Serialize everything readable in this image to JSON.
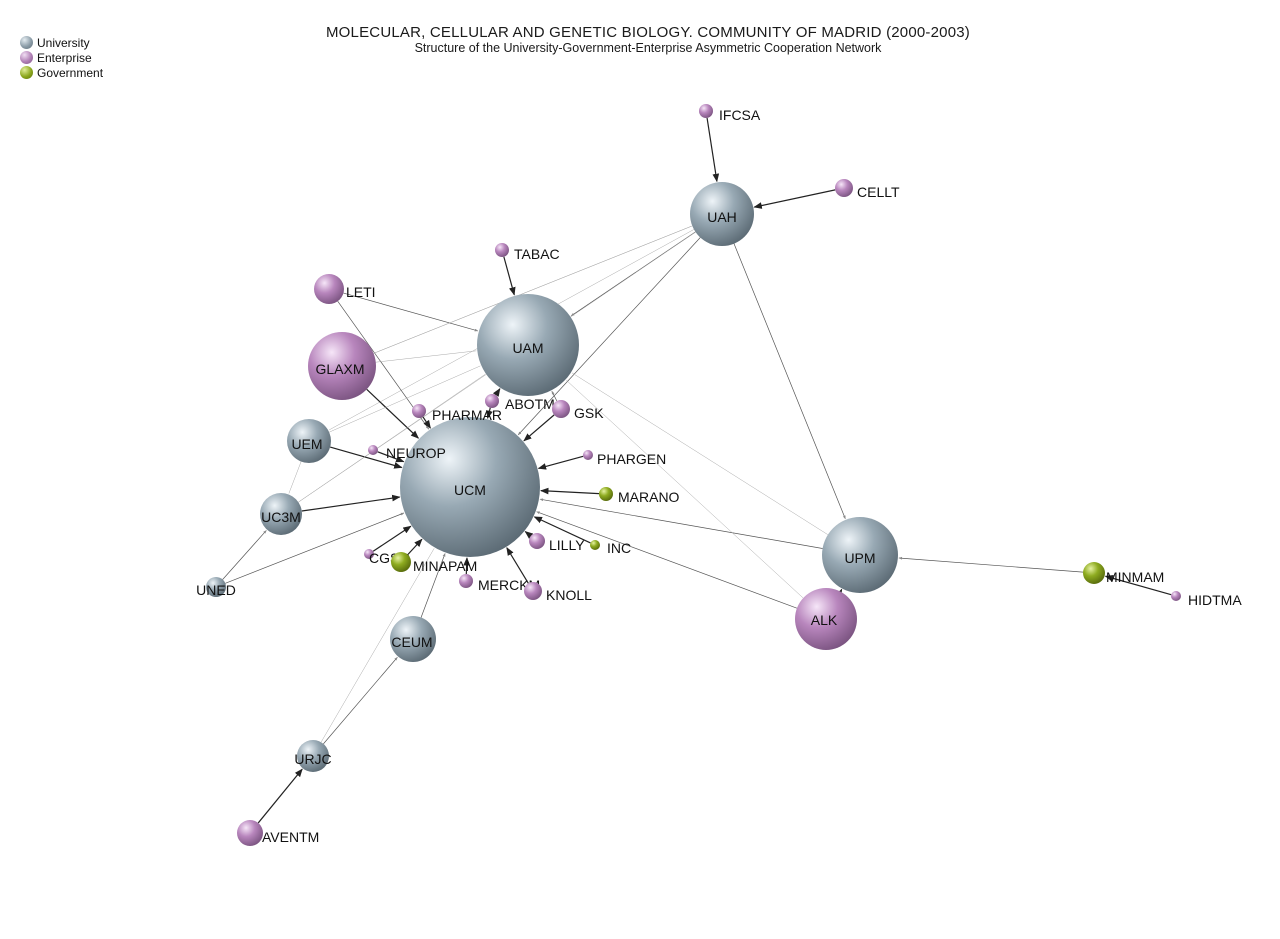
{
  "title": "MOLECULAR, CELLULAR AND GENETIC BIOLOGY. COMMUNITY OF MADRID (2000-2003)",
  "subtitle": "Structure of the University-Government-Enterprise Asymmetric Cooperation Network",
  "legend": [
    {
      "label": "University",
      "type": "university"
    },
    {
      "label": "Enterprise",
      "type": "enterprise"
    },
    {
      "label": "Government",
      "type": "government"
    }
  ],
  "colors": {
    "university": "#8a9ba6",
    "enterprise": "#b07fb5",
    "government": "#8aa61c",
    "edge": "#222222"
  },
  "nodes": [
    {
      "id": "UCM",
      "type": "university"
    },
    {
      "id": "UAM",
      "type": "university"
    },
    {
      "id": "UAH",
      "type": "university"
    },
    {
      "id": "UPM",
      "type": "university"
    },
    {
      "id": "UEM",
      "type": "university"
    },
    {
      "id": "UC3M",
      "type": "university"
    },
    {
      "id": "UNED",
      "type": "university"
    },
    {
      "id": "CEUM",
      "type": "university"
    },
    {
      "id": "URJC",
      "type": "university"
    },
    {
      "id": "GLAXM",
      "type": "enterprise"
    },
    {
      "id": "LETI",
      "type": "enterprise"
    },
    {
      "id": "ALK",
      "type": "enterprise"
    },
    {
      "id": "AVENTM",
      "type": "enterprise"
    },
    {
      "id": "IFCSA",
      "type": "enterprise"
    },
    {
      "id": "CELLT",
      "type": "enterprise"
    },
    {
      "id": "TABAC",
      "type": "enterprise"
    },
    {
      "id": "PHARMAR",
      "type": "enterprise"
    },
    {
      "id": "ABOTM",
      "type": "enterprise"
    },
    {
      "id": "GSK",
      "type": "enterprise"
    },
    {
      "id": "NEUROP",
      "type": "enterprise"
    },
    {
      "id": "PHARGEN",
      "type": "enterprise"
    },
    {
      "id": "LILLY",
      "type": "enterprise"
    },
    {
      "id": "CGSO",
      "type": "enterprise"
    },
    {
      "id": "MERCKM",
      "type": "enterprise"
    },
    {
      "id": "KNOLL",
      "type": "enterprise"
    },
    {
      "id": "HIDTMA",
      "type": "enterprise"
    },
    {
      "id": "MARANO",
      "type": "government"
    },
    {
      "id": "INC",
      "type": "government"
    },
    {
      "id": "MINAPAM",
      "type": "government"
    },
    {
      "id": "MINMAM",
      "type": "government"
    }
  ],
  "edges": [
    {
      "from": "IFCSA",
      "to": "UAH",
      "weight": 2
    },
    {
      "from": "CELLT",
      "to": "UAH",
      "weight": 2
    },
    {
      "from": "TABAC",
      "to": "UAM",
      "weight": 2
    },
    {
      "from": "UAH",
      "to": "UAM",
      "weight": 1
    },
    {
      "from": "UAH",
      "to": "UCM",
      "weight": 1
    },
    {
      "from": "UAH",
      "to": "UPM",
      "weight": 1
    },
    {
      "from": "UAH",
      "to": "GLAXM",
      "weight": 0
    },
    {
      "from": "UAH",
      "to": "UEM",
      "weight": 0
    },
    {
      "from": "UAH",
      "to": "UC3M",
      "weight": 0
    },
    {
      "from": "LETI",
      "to": "UAM",
      "weight": 1
    },
    {
      "from": "LETI",
      "to": "UCM",
      "weight": 1
    },
    {
      "from": "GLAXM",
      "to": "UAM",
      "weight": 0
    },
    {
      "from": "GLAXM",
      "to": "UCM",
      "weight": 2
    },
    {
      "from": "GLAXM",
      "to": "UAH",
      "weight": 0
    },
    {
      "from": "PHARMAR",
      "to": "UCM",
      "weight": 2
    },
    {
      "from": "ABOTM",
      "to": "UAM",
      "weight": 2
    },
    {
      "from": "ABOTM",
      "to": "UCM",
      "weight": 2
    },
    {
      "from": "GSK",
      "to": "UCM",
      "weight": 2
    },
    {
      "from": "GSK",
      "to": "UAM",
      "weight": 1
    },
    {
      "from": "UEM",
      "to": "UCM",
      "weight": 2
    },
    {
      "from": "UEM",
      "to": "UAM",
      "weight": 0
    },
    {
      "from": "UEM",
      "to": "UC3M",
      "weight": 0
    },
    {
      "from": "NEUROP",
      "to": "UCM",
      "weight": 2
    },
    {
      "from": "PHARGEN",
      "to": "UCM",
      "weight": 2
    },
    {
      "from": "MARANO",
      "to": "UCM",
      "weight": 2
    },
    {
      "from": "INC",
      "to": "UCM",
      "weight": 2
    },
    {
      "from": "LILLY",
      "to": "UCM",
      "weight": 2
    },
    {
      "from": "KNOLL",
      "to": "UCM",
      "weight": 2
    },
    {
      "from": "MERCKM",
      "to": "UCM",
      "weight": 2
    },
    {
      "from": "MINAPAM",
      "to": "UCM",
      "weight": 2
    },
    {
      "from": "CGSO",
      "to": "UCM",
      "weight": 2
    },
    {
      "from": "UC3M",
      "to": "UCM",
      "weight": 2
    },
    {
      "from": "UC3M",
      "to": "UAM",
      "weight": 0
    },
    {
      "from": "UNED",
      "to": "UC3M",
      "weight": 1
    },
    {
      "from": "UNED",
      "to": "UCM",
      "weight": 1
    },
    {
      "from": "CEUM",
      "to": "UCM",
      "weight": 1
    },
    {
      "from": "URJC",
      "to": "CEUM",
      "weight": 1
    },
    {
      "from": "URJC",
      "to": "UCM",
      "weight": 0
    },
    {
      "from": "AVENTM",
      "to": "URJC",
      "weight": 2
    },
    {
      "from": "UPM",
      "to": "UCM",
      "weight": 1
    },
    {
      "from": "UPM",
      "to": "UAM",
      "weight": 0
    },
    {
      "from": "ALK",
      "to": "UPM",
      "weight": 2
    },
    {
      "from": "ALK",
      "to": "UCM",
      "weight": 1
    },
    {
      "from": "ALK",
      "to": "UAM",
      "weight": 0
    },
    {
      "from": "MINMAM",
      "to": "UPM",
      "weight": 1
    },
    {
      "from": "HIDTMA",
      "to": "MINMAM",
      "weight": 2
    }
  ]
}
